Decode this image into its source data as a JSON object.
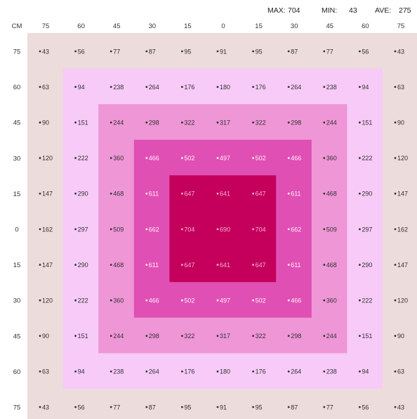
{
  "stats": {
    "max_label": "MAX:",
    "max_value": "704",
    "min_label": "MIN:",
    "min_value": "43",
    "ave_label": "AVE:",
    "ave_value": "275"
  },
  "chart_data": {
    "type": "heatmap",
    "corner_label": "CM",
    "x_labels": [
      "75",
      "60",
      "45",
      "30",
      "15",
      "0",
      "15",
      "30",
      "45",
      "60",
      "75"
    ],
    "y_labels": [
      "75",
      "60",
      "45",
      "30",
      "15",
      "0",
      "15",
      "30",
      "45",
      "60",
      "75"
    ],
    "values": [
      [
        43,
        56,
        77,
        87,
        95,
        91,
        95,
        87,
        77,
        56,
        43
      ],
      [
        63,
        94,
        238,
        264,
        176,
        180,
        176,
        264,
        238,
        94,
        63
      ],
      [
        90,
        151,
        244,
        298,
        322,
        317,
        322,
        298,
        244,
        151,
        90
      ],
      [
        120,
        222,
        360,
        466,
        502,
        497,
        502,
        466,
        360,
        222,
        120
      ],
      [
        147,
        290,
        468,
        611,
        647,
        641,
        647,
        611,
        468,
        290,
        147
      ],
      [
        162,
        297,
        509,
        662,
        704,
        690,
        704,
        662,
        509,
        297,
        162
      ],
      [
        147,
        290,
        468,
        611,
        647,
        641,
        647,
        611,
        468,
        290,
        147
      ],
      [
        120,
        222,
        360,
        466,
        502,
        497,
        502,
        466,
        360,
        222,
        120
      ],
      [
        90,
        151,
        244,
        298,
        322,
        317,
        322,
        298,
        244,
        151,
        90
      ],
      [
        63,
        94,
        238,
        264,
        176,
        180,
        176,
        264,
        238,
        94,
        63
      ],
      [
        43,
        56,
        77,
        87,
        95,
        91,
        95,
        87,
        77,
        56,
        43
      ]
    ],
    "band_colors": [
      "#ecdcdc",
      "#f7caf7",
      "#ef96d6",
      "#e04fb4",
      "#c4005c"
    ]
  }
}
